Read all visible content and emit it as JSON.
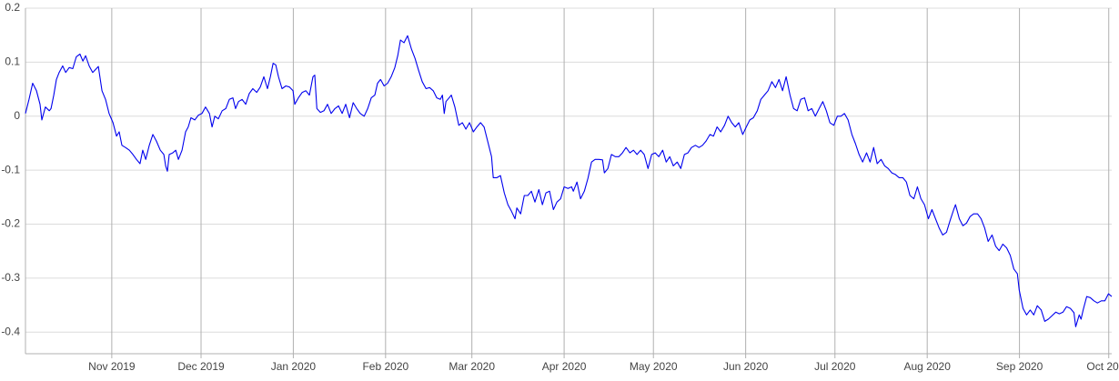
{
  "chart_data": {
    "type": "line",
    "color": "#0000ee",
    "grid": true,
    "xlim": [
      0,
      365
    ],
    "ylim": [
      -0.44,
      0.2
    ],
    "yticks": [
      0.2,
      0.1,
      0,
      -0.1,
      -0.2,
      -0.3,
      -0.4
    ],
    "xticks": [
      {
        "value": 29,
        "label": "Nov 2019"
      },
      {
        "value": 59,
        "label": "Dec 2019"
      },
      {
        "value": 90,
        "label": "Jan 2020"
      },
      {
        "value": 121,
        "label": "Feb 2020"
      },
      {
        "value": 150,
        "label": "Mar 2020"
      },
      {
        "value": 181,
        "label": "Apr 2020"
      },
      {
        "value": 211,
        "label": "May 2020"
      },
      {
        "value": 242,
        "label": "Jun 2020"
      },
      {
        "value": 272,
        "label": "Jul 2020"
      },
      {
        "value": 303,
        "label": "Aug 2020"
      },
      {
        "value": 334,
        "label": "Sep 2020"
      },
      {
        "value": 364,
        "label": "Oct 2020"
      }
    ],
    "x": [
      0,
      1.2,
      2.4,
      3.7,
      4.9,
      5.5,
      6.7,
      8.0,
      8.6,
      9.5,
      10.4,
      11.3,
      12.5,
      13.5,
      14.7,
      15.9,
      17.1,
      18.3,
      19.3,
      20.2,
      21.4,
      22.6,
      24.5,
      25.7,
      26.9,
      28.1,
      29.4,
      30.6,
      31.5,
      32.4,
      33.6,
      34.9,
      36.1,
      37.3,
      38.5,
      39.4,
      40.4,
      41.6,
      42.8,
      44.0,
      45.3,
      46.5,
      47.1,
      47.7,
      48.3,
      49.5,
      50.5,
      51.4,
      52.6,
      53.8,
      54.7,
      55.6,
      56.9,
      58.1,
      59.3,
      60.5,
      61.8,
      62.7,
      63.6,
      64.8,
      66.1,
      67.3,
      68.5,
      69.7,
      70.6,
      71.6,
      72.8,
      74.0,
      75.2,
      76.4,
      77.7,
      78.9,
      80.1,
      81.3,
      82.3,
      83.2,
      84.1,
      85.0,
      86.2,
      87.5,
      88.7,
      89.9,
      90.5,
      91.7,
      93.0,
      94.2,
      95.4,
      96.6,
      97.2,
      97.9,
      99.1,
      100.3,
      101.5,
      102.7,
      104.0,
      105.2,
      106.4,
      107.6,
      108.9,
      110.1,
      111.3,
      112.5,
      113.8,
      115.0,
      116.2,
      117.4,
      118.3,
      119.3,
      120.5,
      121.7,
      122.9,
      124.1,
      125.1,
      126.0,
      127.2,
      128.4,
      129.7,
      130.9,
      132.1,
      133.3,
      134.6,
      135.8,
      137.0,
      138.2,
      139.4,
      140.1,
      140.7,
      141.3,
      141.9,
      143.1,
      144.3,
      145.6,
      146.8,
      148.0,
      149.2,
      150.5,
      151.7,
      152.9,
      154.1,
      155.3,
      156.6,
      157.2,
      158.4,
      159.6,
      160.9,
      162.1,
      163.3,
      164.5,
      165.1,
      166.4,
      167.6,
      168.8,
      170.0,
      171.2,
      172.5,
      173.7,
      174.9,
      176.1,
      177.4,
      178.6,
      179.8,
      181.0,
      182.3,
      183.5,
      184.1,
      185.3,
      186.5,
      187.8,
      189.0,
      190.2,
      191.4,
      192.7,
      193.9,
      194.5,
      195.7,
      196.9,
      198.2,
      199.4,
      200.6,
      201.8,
      203.1,
      204.3,
      205.5,
      206.7,
      207.9,
      209.2,
      210.4,
      211.6,
      212.8,
      214.1,
      215.3,
      216.5,
      217.7,
      219.0,
      220.2,
      221.4,
      222.6,
      223.8,
      225.1,
      226.3,
      227.5,
      228.7,
      230.0,
      231.2,
      232.4,
      233.6,
      234.9,
      236.1,
      237.3,
      238.5,
      239.7,
      241.0,
      242.2,
      243.4,
      244.6,
      245.9,
      247.1,
      248.3,
      249.5,
      250.8,
      252.0,
      253.2,
      254.4,
      255.6,
      256.9,
      258.1,
      259.3,
      260.5,
      261.8,
      263.0,
      264.2,
      265.4,
      266.7,
      267.9,
      269.1,
      270.3,
      271.6,
      272.8,
      274.0,
      275.2,
      276.4,
      277.7,
      278.9,
      280.1,
      281.3,
      282.6,
      283.8,
      285.0,
      286.2,
      287.5,
      288.7,
      289.9,
      291.1,
      292.3,
      293.6,
      294.8,
      296.0,
      297.2,
      298.5,
      299.7,
      300.9,
      302.1,
      303.4,
      304.6,
      305.8,
      307.0,
      308.2,
      309.5,
      310.7,
      311.9,
      312.5,
      313.8,
      315.0,
      316.2,
      317.4,
      318.6,
      319.9,
      321.1,
      322.3,
      323.5,
      324.8,
      326.0,
      327.2,
      328.4,
      329.7,
      330.9,
      332.1,
      333.3,
      333.9,
      335.2,
      336.4,
      337.6,
      338.8,
      340.0,
      341.3,
      342.5,
      343.7,
      344.9,
      346.2,
      347.4,
      348.6,
      349.8,
      351.1,
      352.3,
      352.9,
      354.1,
      354.7,
      355.4,
      356.6,
      357.8,
      359.0,
      360.2,
      361.5,
      362.7,
      363.9,
      365
    ],
    "values": [
      0.005,
      0.031,
      0.061,
      0.047,
      0.022,
      -0.007,
      0.017,
      0.01,
      0.014,
      0.039,
      0.068,
      0.081,
      0.093,
      0.081,
      0.09,
      0.088,
      0.11,
      0.115,
      0.102,
      0.112,
      0.093,
      0.081,
      0.092,
      0.047,
      0.031,
      0.005,
      -0.012,
      -0.037,
      -0.029,
      -0.054,
      -0.058,
      -0.063,
      -0.071,
      -0.08,
      -0.088,
      -0.063,
      -0.08,
      -0.054,
      -0.034,
      -0.046,
      -0.063,
      -0.071,
      -0.092,
      -0.102,
      -0.071,
      -0.068,
      -0.063,
      -0.08,
      -0.063,
      -0.029,
      -0.02,
      -0.003,
      -0.007,
      0.002,
      0.005,
      0.017,
      0.005,
      -0.02,
      0,
      -0.005,
      0.01,
      0.014,
      0.031,
      0.034,
      0.014,
      0.027,
      0.031,
      0.022,
      0.042,
      0.051,
      0.044,
      0.054,
      0.073,
      0.051,
      0.073,
      0.098,
      0.095,
      0.073,
      0.051,
      0.056,
      0.054,
      0.047,
      0.022,
      0.034,
      0.044,
      0.047,
      0.039,
      0.073,
      0.076,
      0.014,
      0.007,
      0.01,
      0.022,
      0.005,
      0.014,
      0.019,
      0.005,
      0.022,
      -0.003,
      0.025,
      0.014,
      0.005,
      0,
      0.014,
      0.034,
      0.039,
      0.061,
      0.068,
      0.056,
      0.061,
      0.073,
      0.09,
      0.112,
      0.141,
      0.136,
      0.149,
      0.124,
      0.107,
      0.085,
      0.064,
      0.051,
      0.053,
      0.047,
      0.034,
      0.031,
      0.039,
      0.005,
      0.027,
      0.031,
      0.039,
      0.017,
      -0.017,
      -0.012,
      -0.024,
      -0.012,
      -0.029,
      -0.02,
      -0.012,
      -0.02,
      -0.046,
      -0.075,
      -0.114,
      -0.114,
      -0.11,
      -0.142,
      -0.164,
      -0.176,
      -0.19,
      -0.17,
      -0.181,
      -0.147,
      -0.147,
      -0.139,
      -0.159,
      -0.136,
      -0.164,
      -0.142,
      -0.139,
      -0.173,
      -0.159,
      -0.153,
      -0.131,
      -0.134,
      -0.131,
      -0.139,
      -0.122,
      -0.153,
      -0.139,
      -0.115,
      -0.085,
      -0.08,
      -0.08,
      -0.081,
      -0.105,
      -0.097,
      -0.071,
      -0.075,
      -0.075,
      -0.068,
      -0.058,
      -0.068,
      -0.063,
      -0.071,
      -0.063,
      -0.071,
      -0.097,
      -0.071,
      -0.068,
      -0.075,
      -0.063,
      -0.085,
      -0.075,
      -0.092,
      -0.085,
      -0.097,
      -0.071,
      -0.068,
      -0.058,
      -0.054,
      -0.058,
      -0.054,
      -0.046,
      -0.034,
      -0.037,
      -0.02,
      -0.029,
      -0.017,
      0,
      -0.012,
      -0.02,
      -0.012,
      -0.034,
      -0.02,
      -0.007,
      -0.003,
      0.01,
      0.031,
      0.039,
      0.047,
      0.064,
      0.053,
      0.068,
      0.047,
      0.073,
      0.039,
      0.014,
      0.01,
      0.031,
      0.034,
      0.01,
      0.014,
      0,
      0.014,
      0.027,
      0.01,
      -0.012,
      -0.017,
      0,
      0,
      0.005,
      -0.007,
      -0.034,
      -0.051,
      -0.071,
      -0.085,
      -0.068,
      -0.085,
      -0.058,
      -0.088,
      -0.08,
      -0.092,
      -0.097,
      -0.105,
      -0.108,
      -0.114,
      -0.114,
      -0.122,
      -0.147,
      -0.153,
      -0.131,
      -0.153,
      -0.164,
      -0.19,
      -0.173,
      -0.19,
      -0.207,
      -0.22,
      -0.215,
      -0.193,
      -0.173,
      -0.164,
      -0.19,
      -0.203,
      -0.198,
      -0.186,
      -0.181,
      -0.181,
      -0.19,
      -0.207,
      -0.232,
      -0.22,
      -0.241,
      -0.249,
      -0.237,
      -0.244,
      -0.258,
      -0.283,
      -0.292,
      -0.322,
      -0.356,
      -0.368,
      -0.359,
      -0.368,
      -0.351,
      -0.359,
      -0.38,
      -0.376,
      -0.37,
      -0.363,
      -0.366,
      -0.363,
      -0.353,
      -0.356,
      -0.364,
      -0.39,
      -0.368,
      -0.376,
      -0.359,
      -0.334,
      -0.336,
      -0.342,
      -0.346,
      -0.342,
      -0.342,
      -0.329,
      -0.334
    ]
  }
}
